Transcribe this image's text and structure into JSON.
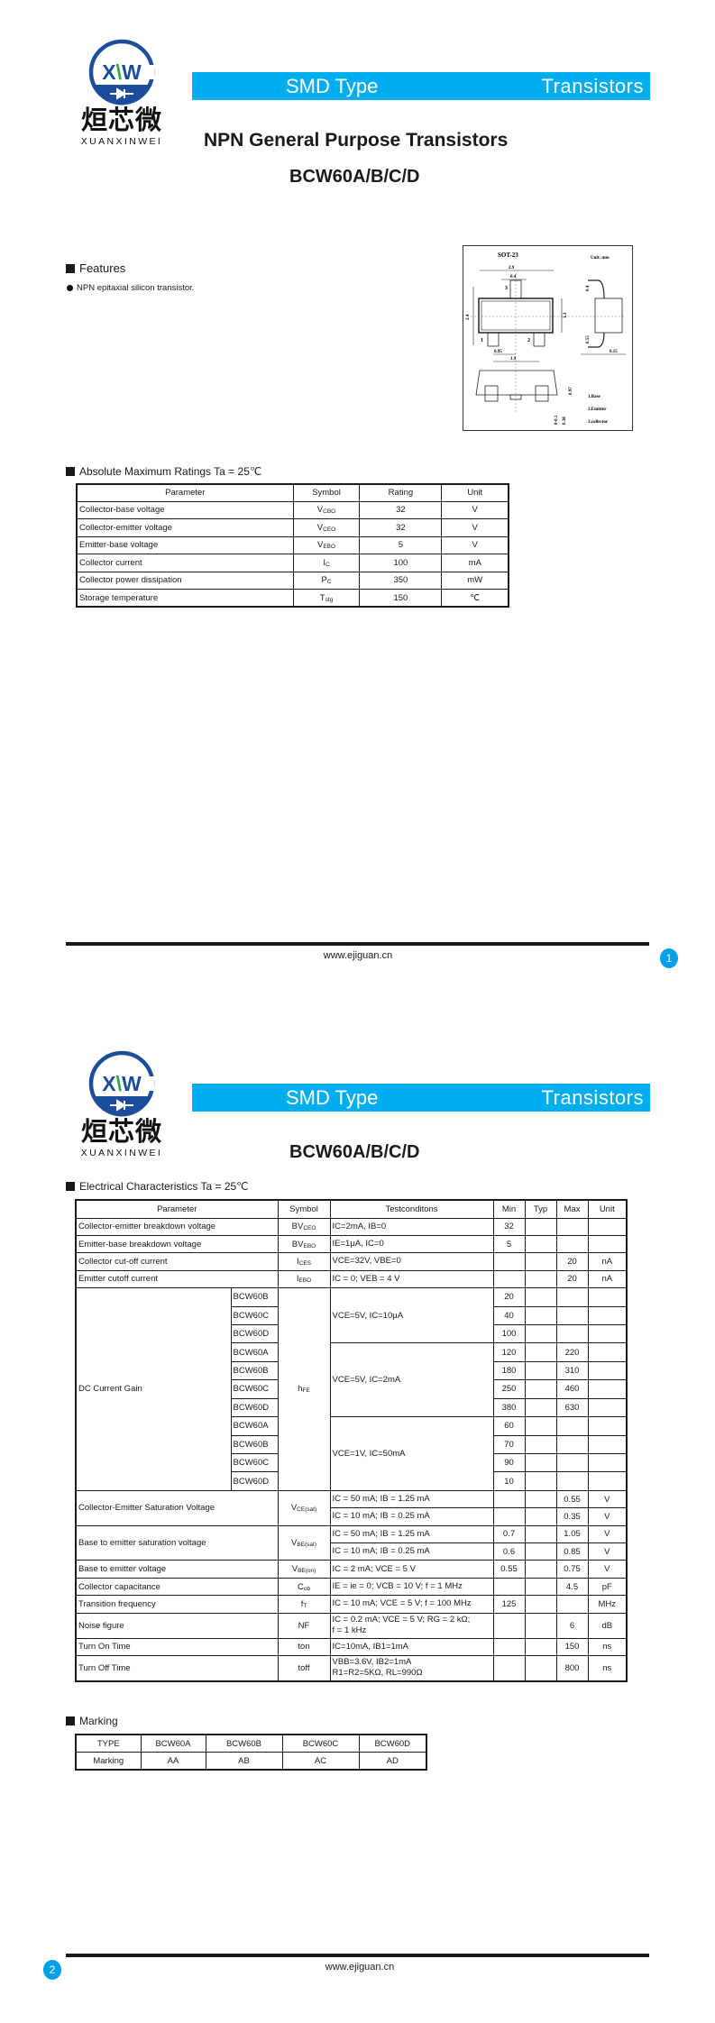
{
  "logo": {
    "chinese": "烜芯微",
    "english": "XUANXINWEI",
    "mark": "XVV"
  },
  "colors": {
    "band": "#00aeef",
    "page_badge": "#00a0e9",
    "logo_blue": "#1b4d9c",
    "logo_green": "#2eaa3c"
  },
  "header": {
    "smd_type": "SMD Type",
    "category": "Transistors"
  },
  "page1": {
    "title": "NPN General Purpose Transistors",
    "part": "BCW60A/B/C/D",
    "features": {
      "heading": "Features",
      "items": [
        "NPN epitaxial silicon transistor."
      ]
    },
    "package": {
      "name": "SOT-23",
      "unit": "Unit: mm",
      "dims": [
        "2.9",
        "0.4",
        "3",
        "2.4",
        "1.3",
        "0.95",
        "1.9",
        "0.4",
        "0.55",
        "0.15",
        "0.97",
        "0-0.1",
        "0.38"
      ],
      "pins": [
        "1",
        "2",
        "3"
      ],
      "legend": [
        "1.Base",
        "2.Emitter",
        "3.collector"
      ]
    },
    "abs_max": {
      "heading": "Absolute Maximum Ratings Ta = 25℃",
      "headers": [
        "Parameter",
        "Symbol",
        "Rating",
        "Unit"
      ],
      "rows": [
        {
          "parameter": "Collector-base voltage",
          "symbol": {
            "main": "V",
            "sub": "CBO"
          },
          "rating": "32",
          "unit": "V"
        },
        {
          "parameter": "Collector-emitter voltage",
          "symbol": {
            "main": "V",
            "sub": "CEO"
          },
          "rating": "32",
          "unit": "V"
        },
        {
          "parameter": "Emitter-base voltage",
          "symbol": {
            "main": "V",
            "sub": "EBO"
          },
          "rating": "5",
          "unit": "V"
        },
        {
          "parameter": "Collector current",
          "symbol": {
            "main": "I",
            "sub": "C"
          },
          "rating": "100",
          "unit": "mA"
        },
        {
          "parameter": "Collector power dissipation",
          "symbol": {
            "main": "P",
            "sub": "C"
          },
          "rating": "350",
          "unit": "mW"
        },
        {
          "parameter": "Storage temperature",
          "symbol": {
            "main": "T",
            "sub": "stg"
          },
          "rating": "150",
          "unit": "℃"
        }
      ]
    },
    "footer": {
      "url": "www.ejiguan.cn",
      "page": "1"
    }
  },
  "page2": {
    "part": "BCW60A/B/C/D",
    "electrical": {
      "heading": "Electrical Characteristics Ta = 25℃",
      "headers": [
        "Parameter",
        "Symbol",
        "Testconditons",
        "Min",
        "Typ",
        "Max",
        "Unit"
      ],
      "groups": [
        {
          "parameter": "Collector-emitter breakdown voltage",
          "symbol": {
            "main": "BV",
            "sub": "CEO"
          },
          "lines": [
            {
              "conditions": "IC=2mA, IB=0",
              "min": "32",
              "typ": "",
              "max": "",
              "unit": ""
            }
          ]
        },
        {
          "parameter": "Emitter-base breakdown voltage",
          "symbol": {
            "main": "BV",
            "sub": "EBO"
          },
          "lines": [
            {
              "conditions": "IE=1μA, IC=0",
              "min": "5",
              "typ": "",
              "max": "",
              "unit": ""
            }
          ]
        },
        {
          "parameter": "Collector cut-off current",
          "symbol": {
            "main": "I",
            "sub": "CES"
          },
          "lines": [
            {
              "conditions": "VCE=32V, VBE=0",
              "min": "",
              "typ": "",
              "max": "20",
              "unit": "nA"
            }
          ]
        },
        {
          "parameter": "Emitter cutoff current",
          "symbol": {
            "main": "I",
            "sub": "EBO"
          },
          "lines": [
            {
              "conditions": "IC = 0; VEB = 4 V",
              "min": "",
              "typ": "",
              "max": "20",
              "unit": "nA"
            }
          ]
        },
        {
          "parameter": "DC Current Gain",
          "symbol": {
            "main": "h",
            "sub": "FE"
          },
          "hfe": [
            {
              "conditions": "VCE=5V, IC=10μA",
              "entries": [
                {
                  "type": "BCW60B",
                  "min": "20",
                  "typ": "",
                  "max": "",
                  "unit": ""
                },
                {
                  "type": "BCW60C",
                  "min": "40",
                  "typ": "",
                  "max": "",
                  "unit": ""
                },
                {
                  "type": "BCW60D",
                  "min": "100",
                  "typ": "",
                  "max": "",
                  "unit": ""
                }
              ]
            },
            {
              "conditions": "VCE=5V, IC=2mA",
              "entries": [
                {
                  "type": "BCW60A",
                  "min": "120",
                  "typ": "",
                  "max": "220",
                  "unit": ""
                },
                {
                  "type": "BCW60B",
                  "min": "180",
                  "typ": "",
                  "max": "310",
                  "unit": ""
                },
                {
                  "type": "BCW60C",
                  "min": "250",
                  "typ": "",
                  "max": "460",
                  "unit": ""
                },
                {
                  "type": "BCW60D",
                  "min": "380",
                  "typ": "",
                  "max": "630",
                  "unit": ""
                }
              ]
            },
            {
              "conditions": "VCE=1V, IC=50mA",
              "entries": [
                {
                  "type": "BCW60A",
                  "min": "60",
                  "typ": "",
                  "max": "",
                  "unit": ""
                },
                {
                  "type": "BCW60B",
                  "min": "70",
                  "typ": "",
                  "max": "",
                  "unit": ""
                },
                {
                  "type": "BCW60C",
                  "min": "90",
                  "typ": "",
                  "max": "",
                  "unit": ""
                },
                {
                  "type": "BCW60D",
                  "min": "10",
                  "typ": "",
                  "max": "",
                  "unit": ""
                }
              ]
            }
          ]
        },
        {
          "parameter": "Collector-Emitter Saturation Voltage",
          "symbol": {
            "main": "V",
            "sub": "CE(sat)"
          },
          "lines": [
            {
              "conditions": "IC = 50 mA; IB = 1.25 mA",
              "min": "",
              "typ": "",
              "max": "0.55",
              "unit": "V"
            },
            {
              "conditions": "IC = 10 mA; IB = 0.25 mA",
              "min": "",
              "typ": "",
              "max": "0.35",
              "unit": "V"
            }
          ]
        },
        {
          "parameter": "Base to emitter saturation voltage",
          "symbol": {
            "main": "V",
            "sub": "BE(sat)"
          },
          "lines": [
            {
              "conditions": "IC = 50 mA; IB = 1.25 mA",
              "min": "0.7",
              "typ": "",
              "max": "1.05",
              "unit": "V"
            },
            {
              "conditions": "IC = 10 mA; IB = 0.25 mA",
              "min": "0.6",
              "typ": "",
              "max": "0.85",
              "unit": "V"
            }
          ]
        },
        {
          "parameter": "Base to emitter voltage",
          "symbol": {
            "main": "V",
            "sub": "BE(on)"
          },
          "lines": [
            {
              "conditions": "IC = 2 mA; VCE = 5 V",
              "min": "0.55",
              "typ": "",
              "max": "0.75",
              "unit": "V"
            }
          ]
        },
        {
          "parameter": "Collector capacitance",
          "symbol": {
            "main": "C",
            "sub": "ob"
          },
          "lines": [
            {
              "conditions": "IE = ie = 0; VCB = 10 V; f = 1 MHz",
              "min": "",
              "typ": "",
              "max": "4.5",
              "unit": "pF"
            }
          ]
        },
        {
          "parameter": "Transition frequency",
          "symbol": {
            "main": "f",
            "sub": "T"
          },
          "lines": [
            {
              "conditions": "IC = 10 mA; VCE = 5 V; f = 100 MHz",
              "min": "125",
              "typ": "",
              "max": "",
              "unit": "MHz"
            }
          ]
        },
        {
          "parameter": "Noise figure",
          "symbol": {
            "main": "NF",
            "sub": ""
          },
          "lines": [
            {
              "conditions": "IC = 0.2 mA; VCE = 5 V; RG = 2 kΩ;",
              "conditions2": "f = 1 kHz",
              "min": "",
              "typ": "",
              "max": "6",
              "unit": "dB"
            }
          ]
        },
        {
          "parameter": "Turn On Time",
          "symbol": {
            "main": "ton",
            "sub": ""
          },
          "lines": [
            {
              "conditions": "IC=10mA, IB1=1mA",
              "min": "",
              "typ": "",
              "max": "150",
              "unit": "ns"
            }
          ]
        },
        {
          "parameter": "Turn Off Time",
          "symbol": {
            "main": "toff",
            "sub": ""
          },
          "lines": [
            {
              "conditions": "VBB=3.6V, IB2=1mA",
              "conditions2": "R1=R2=5KΩ, RL=990Ω",
              "min": "",
              "typ": "",
              "max": "800",
              "unit": "ns"
            }
          ]
        }
      ]
    },
    "marking": {
      "heading": "Marking",
      "rows": [
        [
          "TYPE",
          "BCW60A",
          "BCW60B",
          "BCW60C",
          "BCW60D"
        ],
        [
          "Marking",
          "AA",
          "AB",
          "AC",
          "AD"
        ]
      ]
    },
    "footer": {
      "url": "www.ejiguan.cn",
      "page": "2"
    }
  }
}
